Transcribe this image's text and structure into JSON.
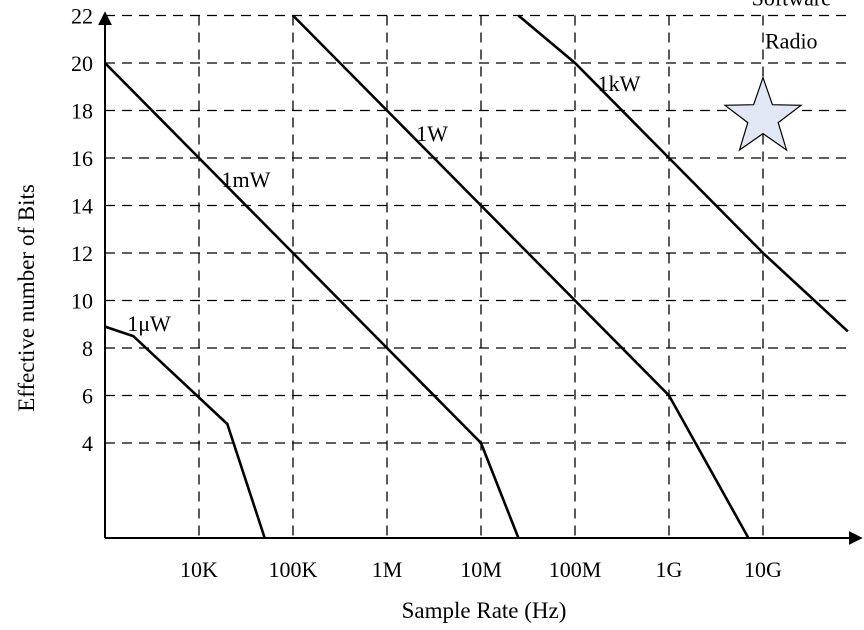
{
  "chart_data": {
    "type": "line",
    "xlabel": "Sample Rate (Hz)",
    "ylabel": "Effective number of Bits",
    "x_scale": "log",
    "xlim": [
      1000,
      100000000000.0
    ],
    "ylim": [
      0,
      23.5
    ],
    "x_ticks": [
      {
        "value": 10000,
        "label": "10K"
      },
      {
        "value": 100000,
        "label": "100K"
      },
      {
        "value": 1000000,
        "label": "1M"
      },
      {
        "value": 10000000,
        "label": "10M"
      },
      {
        "value": 100000000,
        "label": "100M"
      },
      {
        "value": 1000000000,
        "label": "1G"
      },
      {
        "value": 10000000000,
        "label": "10G"
      }
    ],
    "y_ticks": [
      4,
      6,
      8,
      10,
      12,
      14,
      16,
      18,
      20,
      22
    ],
    "grid": true,
    "series": [
      {
        "name": "1μW",
        "x": [
          1000,
          2000,
          20000,
          50000
        ],
        "y": [
          8.9,
          8.5,
          4.8,
          0
        ]
      },
      {
        "name": "1mW",
        "x": [
          1000,
          10000,
          100000,
          1000000,
          10000000,
          25000000
        ],
        "y": [
          20,
          16,
          12,
          8,
          4,
          0
        ]
      },
      {
        "name": "1W",
        "x": [
          100000,
          1000000,
          10000000,
          100000000,
          1000000000,
          7000000000
        ],
        "y": [
          22,
          18,
          14,
          10,
          6,
          0
        ]
      },
      {
        "name": "1kW",
        "x": [
          25000000,
          100000000,
          1000000000,
          10000000000,
          80000000000
        ],
        "y": [
          22,
          20,
          16,
          12,
          8.7
        ]
      }
    ],
    "annotations": [
      {
        "text": "Software",
        "x": 20000000000,
        "y": 22.8
      },
      {
        "text": "Radio",
        "x": 20000000000,
        "y": 21
      },
      {
        "text": "star",
        "shape": "star",
        "x": 10000000000,
        "y": 17.7,
        "fill": "#e1e7f5"
      }
    ]
  }
}
